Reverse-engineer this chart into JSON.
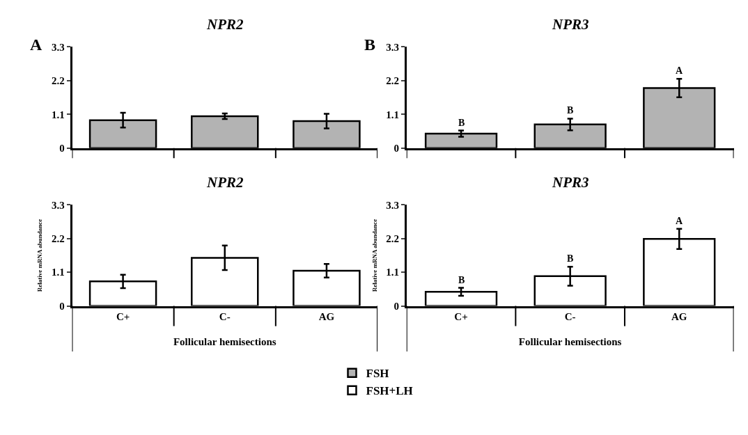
{
  "chart_data": [
    {
      "type": "bar",
      "title": "NPR2",
      "categories": [
        "C+",
        "C-",
        "AG"
      ],
      "series": [
        {
          "name": "FSH",
          "color": "#b3b3b3",
          "values": [
            0.91,
            1.04,
            0.88
          ],
          "errors": [
            0.24,
            0.09,
            0.24
          ]
        }
      ],
      "ylim": [
        0,
        3.3
      ],
      "yticks": [
        0,
        1.1,
        2.2,
        3.3
      ],
      "tick_labels": "y",
      "legend": "bottom",
      "annotations": [
        "A"
      ]
    },
    {
      "type": "bar",
      "title": "NPR3",
      "categories": [
        "C+",
        "C-",
        "AG"
      ],
      "series": [
        {
          "color": "#b3b3b3",
          "values": [
            0.47,
            0.77,
            1.96
          ],
          "errors": [
            0.1,
            0.19,
            0.3
          ]
        }
      ],
      "ylim": [
        0,
        3.3
      ],
      "yticks": [
        0,
        1.1,
        2.2,
        3.3
      ],
      "tick_labels": "y",
      "annotations": [
        "B",
        {
          "text": "B",
          "x": "C+",
          "y": 0.57
        },
        {
          "text": "B",
          "x": "C-",
          "y": 0.96
        },
        {
          "text": "A",
          "x": "AG",
          "y": 2.26
        }
      ]
    },
    {
      "type": "bar",
      "title": "NPR2",
      "xlabel": "Follicular hemisections",
      "ylabel": "Relative mRNA abundance",
      "categories": [
        "C+",
        "C-",
        "AG"
      ],
      "series": [
        {
          "name": "FSH+LH",
          "color": "#ffffff",
          "values": [
            0.8,
            1.57,
            1.15
          ],
          "errors": [
            0.22,
            0.4,
            0.22
          ]
        }
      ],
      "ylim": [
        0,
        3.3
      ],
      "yticks": [
        0,
        1.1,
        2.2,
        3.3
      ],
      "legend": "bottom"
    },
    {
      "type": "bar",
      "title": "NPR3",
      "xlabel": "Follicular hemisections",
      "ylabel": "Relative mRNA abundance",
      "categories": [
        "C+",
        "C-",
        "AG"
      ],
      "series": [
        {
          "color": "#ffffff",
          "values": [
            0.46,
            0.97,
            2.19
          ],
          "errors": [
            0.13,
            0.31,
            0.33
          ]
        }
      ],
      "ylim": [
        0,
        3.3
      ],
      "yticks": [
        0,
        1.1,
        2.2,
        3.3
      ],
      "annotations": [
        {
          "text": "B",
          "x": "C+",
          "y": 0.59
        },
        {
          "text": "B",
          "x": "C-",
          "y": 1.28
        },
        {
          "text": "A",
          "x": "AG",
          "y": 2.52
        }
      ]
    }
  ]
}
